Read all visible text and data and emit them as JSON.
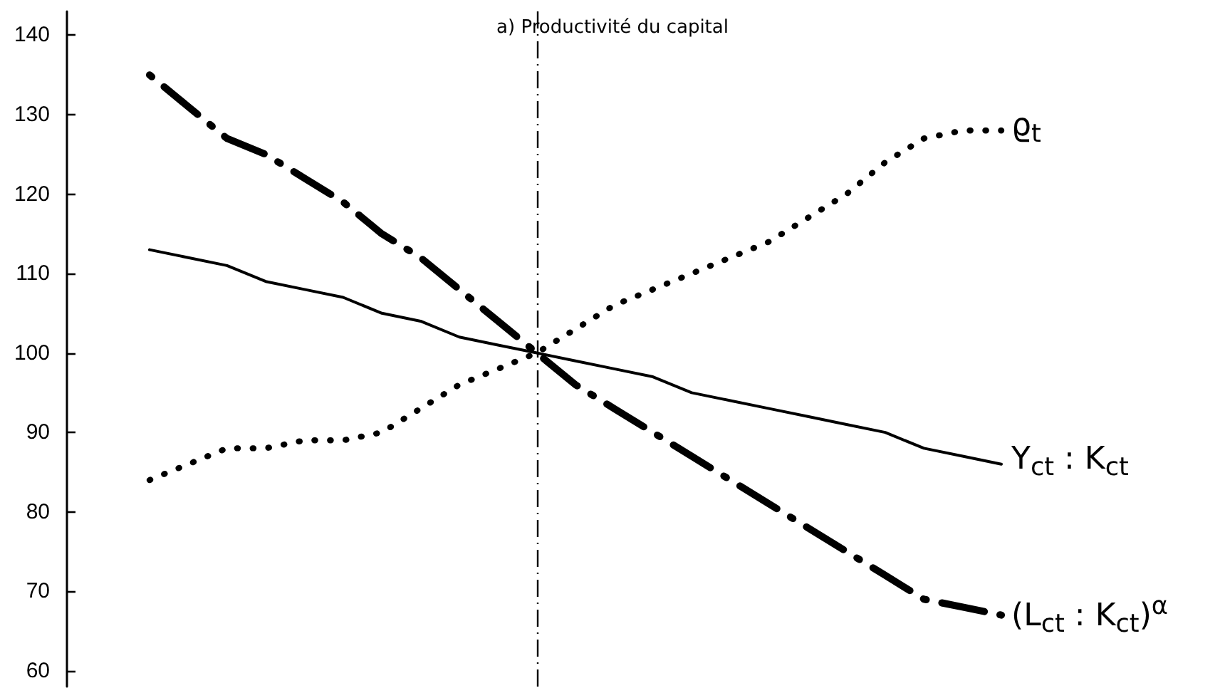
{
  "chart_data": {
    "type": "line",
    "title": "a) Productivité du capital",
    "categories": [
      null,
      null,
      null,
      null,
      null,
      null,
      null,
      null,
      null,
      null,
      null,
      null,
      null,
      null,
      null,
      null,
      null,
      null,
      null,
      null,
      null,
      null,
      null
    ],
    "series": [
      {
        "name": "ϱ$_{t}$",
        "color": "#000000",
        "line_style": "dotted",
        "values": [
          84,
          86,
          88,
          88,
          89,
          89,
          90,
          93,
          96,
          98,
          100,
          103,
          106,
          108,
          110,
          112,
          114,
          117,
          120,
          124,
          127,
          128,
          128
        ]
      },
      {
        "name": "Y$_{ct}$ : K$_{ct}$",
        "color": "#000000",
        "line_style": "solid",
        "values": [
          113,
          112,
          111,
          109,
          108,
          107,
          105,
          104,
          102,
          101,
          100,
          99,
          98,
          97,
          95,
          94,
          93,
          92,
          91,
          90,
          88,
          87,
          86
        ]
      },
      {
        "name": "(L$_{ct}$ : K$_{ct}$)$^{α}$",
        "color": "#000000",
        "line_style": "dashed",
        "values": [
          135,
          131,
          127,
          125,
          122,
          119,
          115,
          112,
          108,
          104,
          100,
          96,
          93,
          90,
          87,
          84,
          81,
          78,
          75,
          72,
          69,
          68,
          67
        ]
      }
    ],
    "ylim": [
      58,
      143
    ],
    "yticks": [
      60,
      70,
      80,
      90,
      100,
      110,
      120,
      130,
      140
    ],
    "tick_labels": "y"
  }
}
